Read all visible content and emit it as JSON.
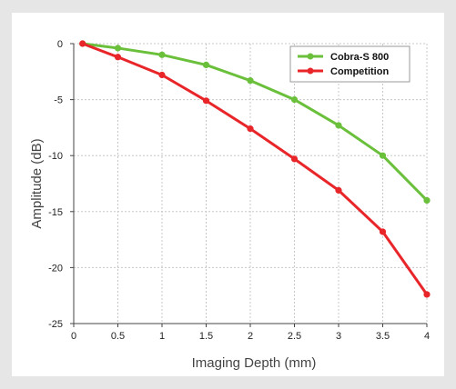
{
  "chart_data": {
    "type": "line",
    "xlabel": "Imaging Depth (mm)",
    "ylabel": "Amplitude (dB)",
    "xlim": [
      0,
      4
    ],
    "ylim": [
      -25,
      0
    ],
    "xticks": [
      0,
      0.5,
      1,
      1.5,
      2,
      2.5,
      3,
      3.5,
      4
    ],
    "xtick_labels": [
      "0",
      "0.5",
      "1",
      "1.5",
      "2",
      "2.5",
      "3",
      "3.5",
      "4"
    ],
    "yticks": [
      0,
      -5,
      -10,
      -15,
      -20,
      -25
    ],
    "ytick_labels": [
      "0",
      "-5",
      "-10",
      "-15",
      "-20",
      "-25"
    ],
    "grid": true,
    "legend_position": "top-right",
    "x": [
      0.1,
      0.5,
      1,
      1.5,
      2,
      2.5,
      3,
      3.5,
      4
    ],
    "series": [
      {
        "name": "Cobra-S 800",
        "color": "#6abf3b",
        "values": [
          0,
          -0.4,
          -1.0,
          -1.9,
          -3.3,
          -5.0,
          -7.3,
          -10.0,
          -14.0
        ]
      },
      {
        "name": "Competition",
        "color": "#e8262a",
        "values": [
          0,
          -1.2,
          -2.8,
          -5.1,
          -7.6,
          -10.3,
          -13.1,
          -16.8,
          -22.4
        ]
      }
    ]
  }
}
